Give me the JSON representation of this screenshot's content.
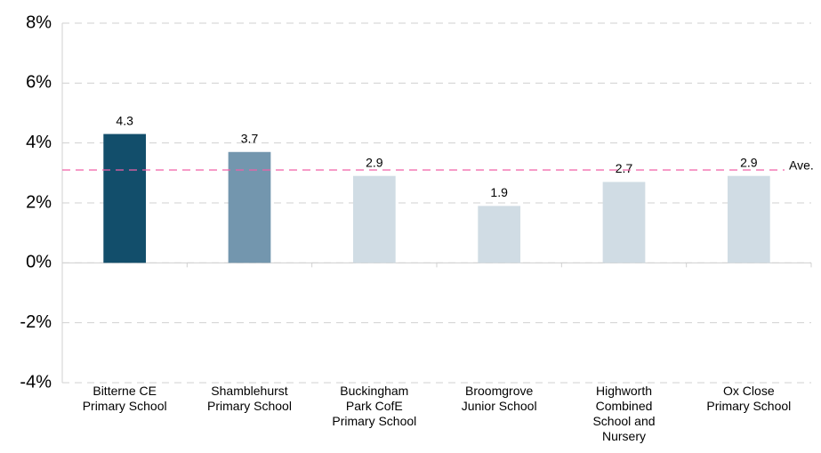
{
  "chart_data": {
    "type": "bar",
    "categories": [
      "Bitterne CE\nPrimary School",
      "Shamblehurst\nPrimary School",
      "Buckingham\nPark CofE\nPrimary School",
      "Broomgrove\nJunior School",
      "Highworth\nCombined\nSchool and\nNursery",
      "Ox Close\nPrimary School"
    ],
    "values": [
      4.3,
      3.7,
      2.9,
      1.9,
      2.7,
      2.9
    ],
    "colors": [
      "#124e6b",
      "#7396ae",
      "#d0dce4",
      "#d0dce4",
      "#d0dce4",
      "#d0dce4"
    ],
    "ylim": [
      -4,
      8
    ],
    "yticks": [
      {
        "value": -4,
        "label": "-4%"
      },
      {
        "value": -2,
        "label": "-2%"
      },
      {
        "value": 0,
        "label": "0%"
      },
      {
        "value": 2,
        "label": "2%"
      },
      {
        "value": 4,
        "label": "4%"
      },
      {
        "value": 6,
        "label": "6%"
      },
      {
        "value": 8,
        "label": "8%"
      }
    ],
    "grid": true,
    "average": {
      "value": 3.1,
      "label": "Ave.",
      "color": "#f060a8"
    }
  }
}
